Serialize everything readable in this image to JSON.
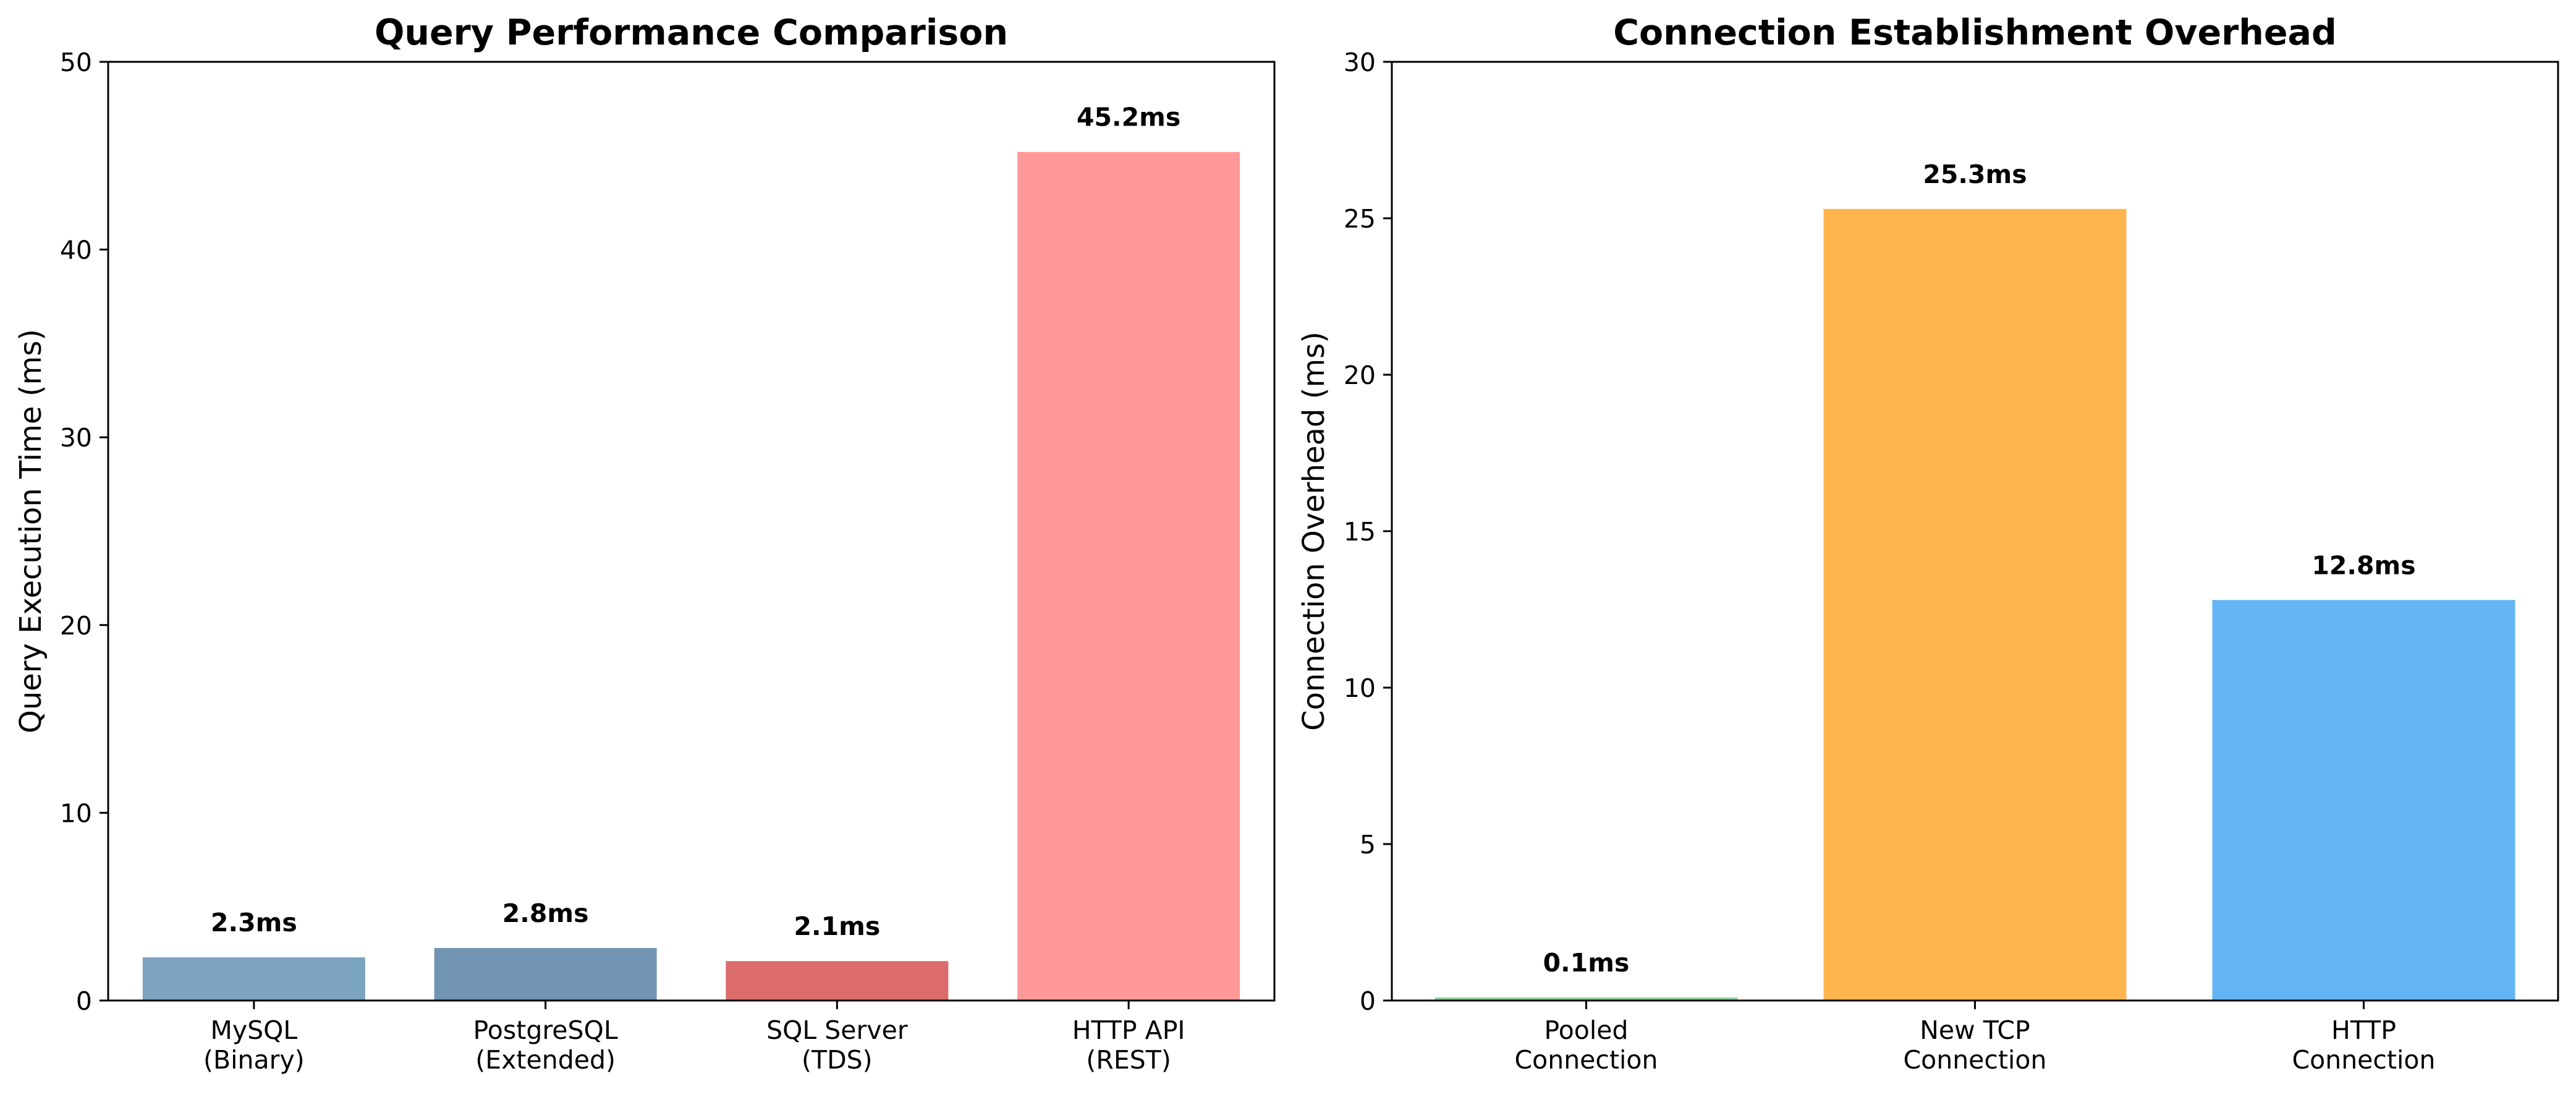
{
  "chart_data": [
    {
      "type": "bar",
      "title": "Query Performance Comparison",
      "xlabel": "",
      "ylabel": "Query Execution Time (ms)",
      "ylim": [
        0,
        50
      ],
      "yticks": [
        0,
        10,
        20,
        30,
        40,
        50
      ],
      "grid": false,
      "categories": [
        "MySQL\n(Binary)",
        "PostgreSQL\n(Extended)",
        "SQL Server\n(TDS)",
        "HTTP API\n(REST)"
      ],
      "values": [
        2.3,
        2.8,
        2.1,
        45.2
      ],
      "value_labels": [
        "2.3ms",
        "2.8ms",
        "2.1ms",
        "45.2ms"
      ],
      "colors": [
        "#7ba3c0",
        "#7195b3",
        "#dc6b6b",
        "#ff9999"
      ]
    },
    {
      "type": "bar",
      "title": "Connection Establishment Overhead",
      "xlabel": "",
      "ylabel": "Connection Overhead (ms)",
      "ylim": [
        0,
        30
      ],
      "yticks": [
        0,
        5,
        10,
        15,
        20,
        25,
        30
      ],
      "grid": false,
      "categories": [
        "Pooled\nConnection",
        "New TCP\nConnection",
        "HTTP\nConnection"
      ],
      "values": [
        0.1,
        25.3,
        12.8
      ],
      "value_labels": [
        "0.1ms",
        "25.3ms",
        "12.8ms"
      ],
      "colors": [
        "#8fd19e",
        "#ffb54d",
        "#64b5f6"
      ]
    }
  ]
}
